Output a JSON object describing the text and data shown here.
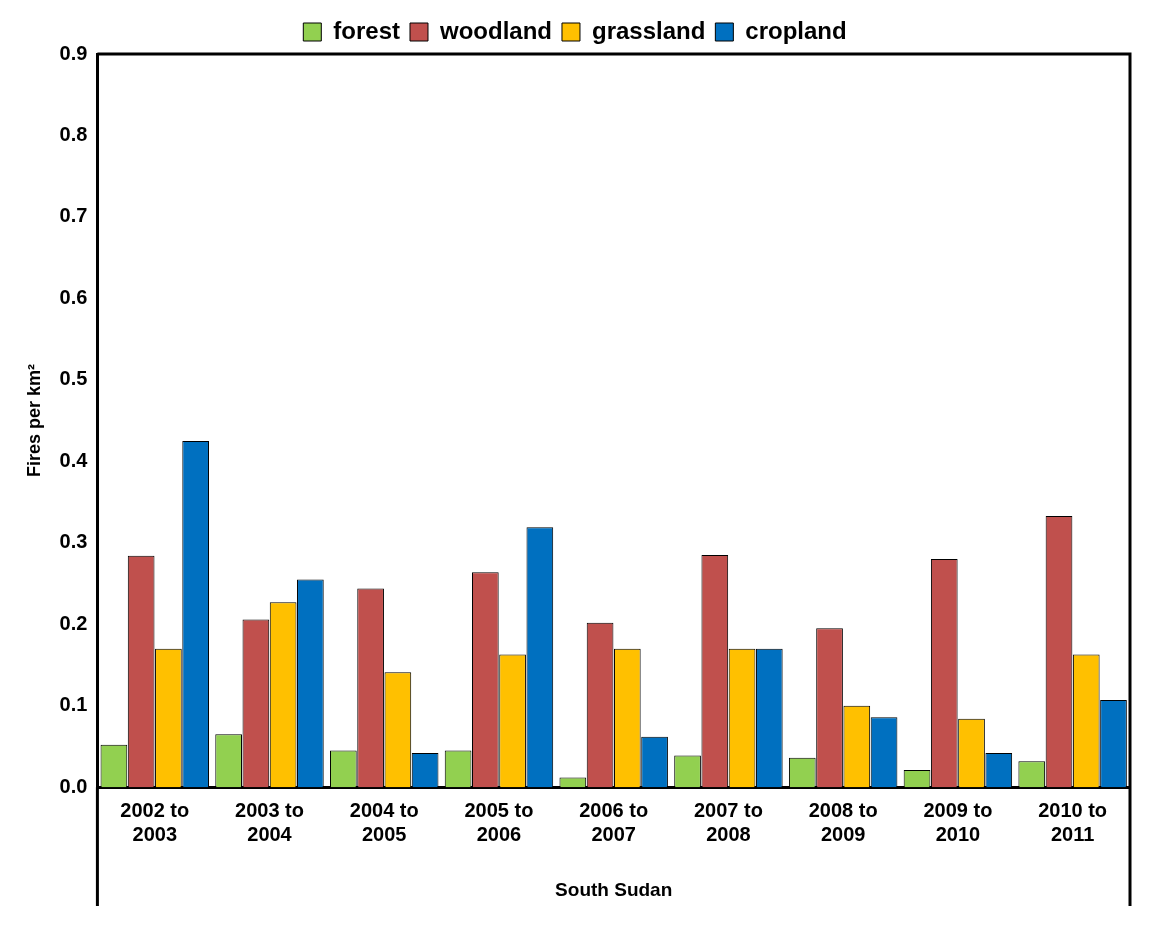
{
  "chart_data": {
    "type": "bar",
    "xlabel": "South Sudan",
    "ylabel": "Fires per km²",
    "categories": [
      "2002 to 2003",
      "2003 to 2004",
      "2004 to 2005",
      "2005 to 2006",
      "2006 to 2007",
      "2007 to 2008",
      "2008 to 2009",
      "2009 to 2010",
      "2010 to 2011"
    ],
    "series": [
      {
        "name": "forest",
        "color": "#92d050",
        "values": [
          0.052,
          0.065,
          0.045,
          0.045,
          0.012,
          0.039,
          0.036,
          0.021,
          0.032
        ]
      },
      {
        "name": "woodland",
        "color": "#c0504d",
        "values": [
          0.284,
          0.206,
          0.244,
          0.264,
          0.202,
          0.285,
          0.195,
          0.28,
          0.333
        ]
      },
      {
        "name": "grassland",
        "color": "#ffc000",
        "values": [
          0.17,
          0.227,
          0.141,
          0.163,
          0.17,
          0.17,
          0.1,
          0.084,
          0.163
        ]
      },
      {
        "name": "cropland",
        "color": "#0070c0",
        "values": [
          0.425,
          0.255,
          0.042,
          0.319,
          0.062,
          0.17,
          0.086,
          0.042,
          0.107
        ]
      }
    ],
    "ylim": [
      0,
      0.9
    ],
    "yticks": [
      {
        "value": 0,
        "label": "0.0"
      },
      {
        "value": 0.1,
        "label": "0.1"
      },
      {
        "value": 0.2,
        "label": "0.2"
      },
      {
        "value": 0.3,
        "label": "0.3"
      },
      {
        "value": 0.4,
        "label": "0.4"
      },
      {
        "value": 0.5,
        "label": "0.5"
      },
      {
        "value": 0.6,
        "label": "0.6"
      },
      {
        "value": 0.7,
        "label": "0.7"
      },
      {
        "value": 0.8,
        "label": "0.8"
      },
      {
        "value": 0.9,
        "label": "0.9"
      }
    ],
    "grid": false,
    "legend": "top"
  }
}
